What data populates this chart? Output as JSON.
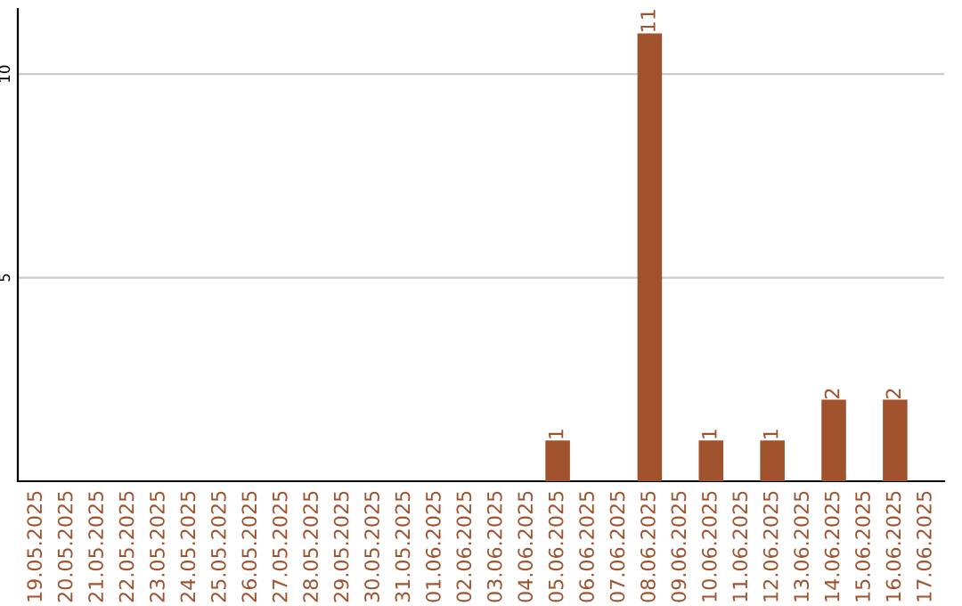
{
  "chart_data": {
    "type": "bar",
    "categories": [
      "19.05.2025",
      "20.05.2025",
      "21.05.2025",
      "22.05.2025",
      "23.05.2025",
      "24.05.2025",
      "25.05.2025",
      "26.05.2025",
      "27.05.2025",
      "28.05.2025",
      "29.05.2025",
      "30.05.2025",
      "31.05.2025",
      "01.06.2025",
      "02.06.2025",
      "03.06.2025",
      "04.06.2025",
      "05.06.2025",
      "06.06.2025",
      "07.06.2025",
      "08.06.2025",
      "09.06.2025",
      "10.06.2025",
      "11.06.2025",
      "12.06.2025",
      "13.06.2025",
      "14.06.2025",
      "15.06.2025",
      "16.06.2025",
      "17.06.2025"
    ],
    "values": [
      0,
      0,
      0,
      0,
      0,
      0,
      0,
      0,
      0,
      0,
      0,
      0,
      0,
      0,
      0,
      0,
      0,
      1,
      0,
      0,
      11,
      0,
      1,
      0,
      1,
      0,
      2,
      0,
      2,
      0
    ],
    "value_labels": [
      null,
      null,
      null,
      null,
      null,
      null,
      null,
      null,
      null,
      null,
      null,
      null,
      null,
      null,
      null,
      null,
      null,
      "1",
      null,
      null,
      "11",
      null,
      "1",
      null,
      "1",
      null,
      "2",
      null,
      "2",
      null
    ],
    "color": "#a0522d",
    "ylim": [
      0,
      11.6
    ],
    "yticks": [
      5,
      10
    ],
    "grid": "y"
  }
}
